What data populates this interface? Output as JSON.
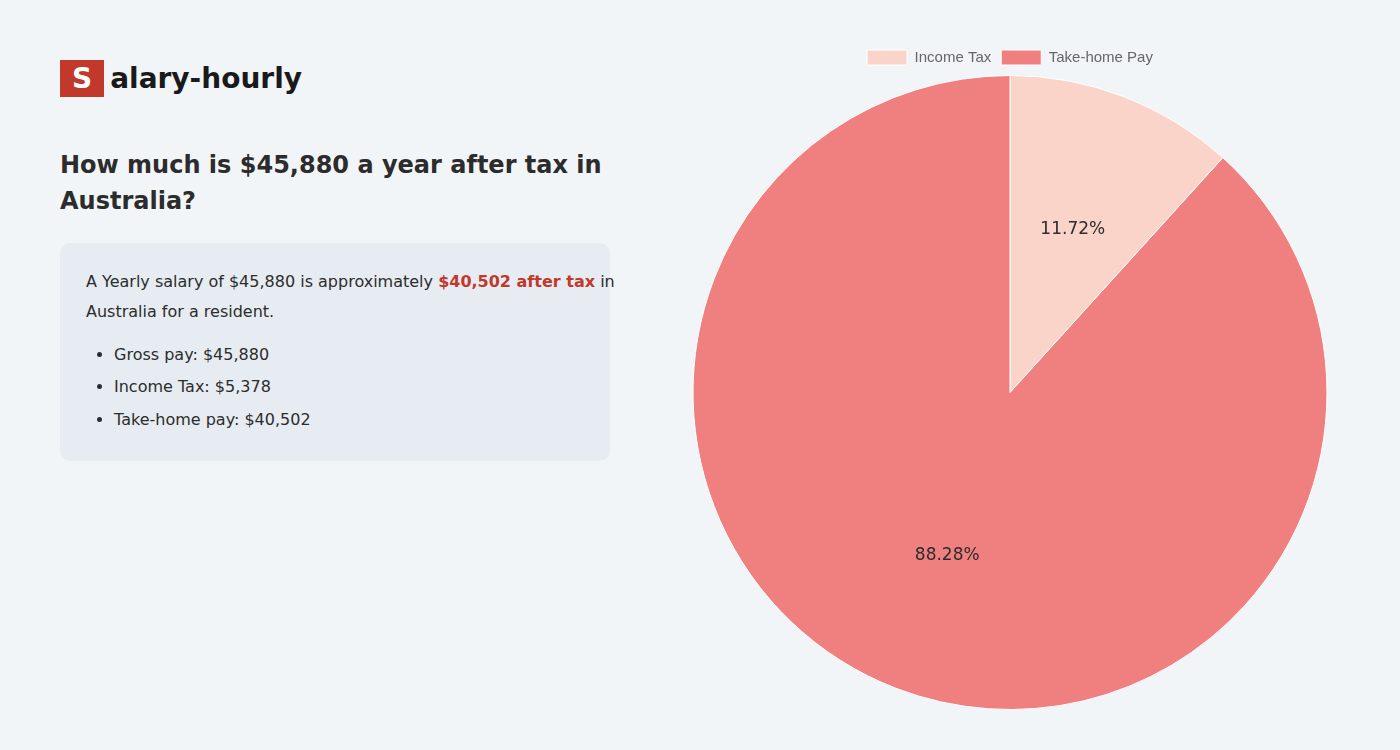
{
  "chart_data": {
    "type": "pie",
    "title": [
      "How much is $45,880 a year after tax in",
      "Australia?"
    ],
    "categories": [
      "Income Tax",
      "Take-home Pay"
    ],
    "values": [
      11.72,
      88.28
    ],
    "value_labels": [
      "11.72%",
      "88.28%"
    ],
    "colors": [
      "#fad4c8",
      "#f08080"
    ],
    "data_labels": true,
    "legend": "top",
    "annotations": [
      [
        {
          "text": "S",
          "color": "#ffffff",
          "background": "#c0392b"
        },
        {
          "text": "alary-hourly"
        }
      ],
      [
        {
          "text": "A Yearly salary of $45,880 is approximately "
        },
        {
          "text": "$40,502 after tax",
          "color": "#c0392b"
        },
        {
          "text": " in"
        }
      ],
      [
        {
          "text": "Australia for a resident."
        }
      ],
      {
        "list": [
          "Gross pay: $45,880",
          "Income Tax: $5,378",
          "Take-home pay: $40,502"
        ]
      }
    ]
  }
}
